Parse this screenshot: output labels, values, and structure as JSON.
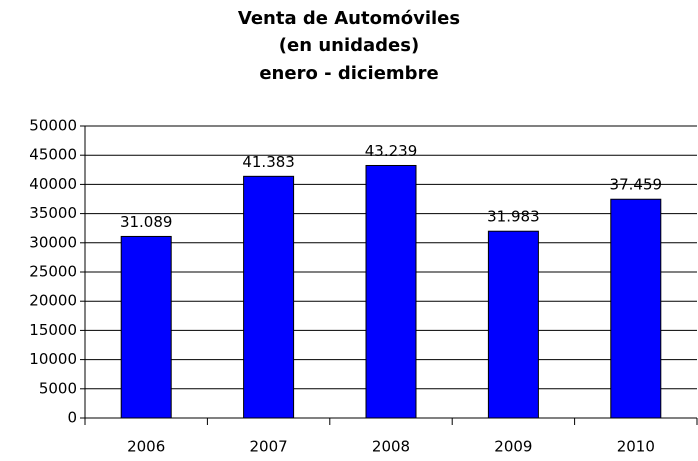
{
  "chart_data": {
    "type": "bar",
    "title": [
      "Venta de Automóviles",
      "(en unidades)",
      "enero - diciembre"
    ],
    "categories": [
      "2006",
      "2007",
      "2008",
      "2009",
      "2010"
    ],
    "values": [
      31089,
      41383,
      43239,
      31983,
      37459
    ],
    "value_labels": [
      "31.089",
      "41.383",
      "43.239",
      "31.983",
      "37.459"
    ],
    "color": "#0000ff",
    "ylim": [
      0,
      50000
    ],
    "yticks": [
      0,
      5000,
      10000,
      15000,
      20000,
      25000,
      30000,
      35000,
      40000,
      45000,
      50000
    ],
    "grid": true
  }
}
